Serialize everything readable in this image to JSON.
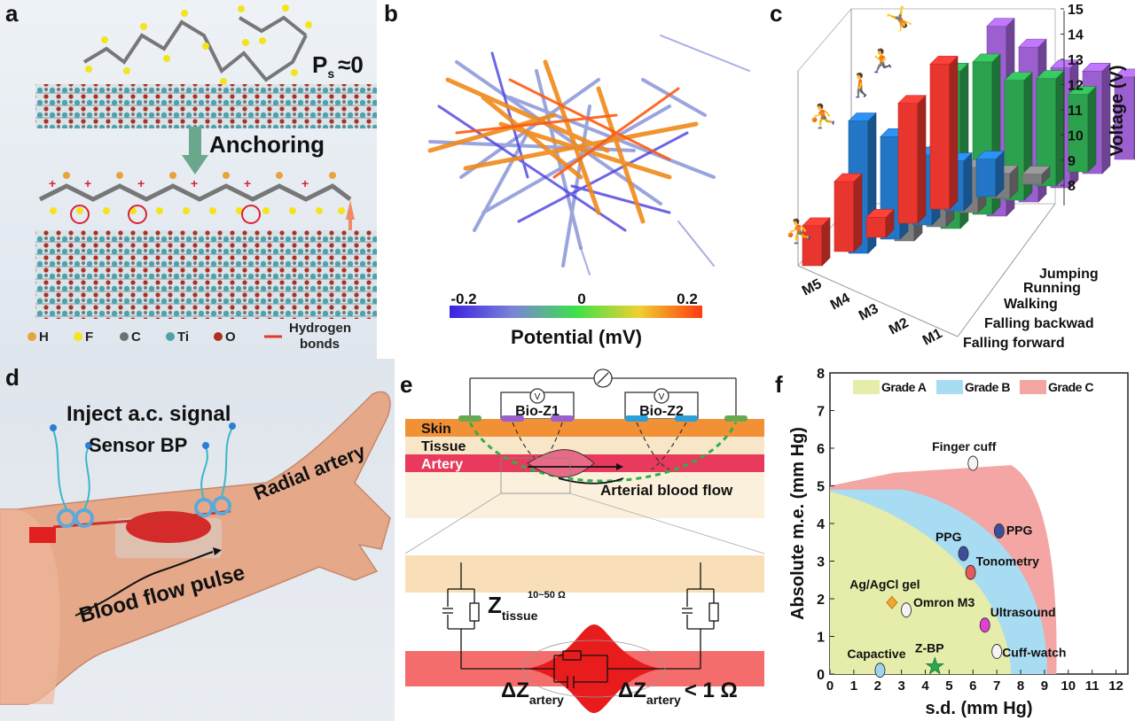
{
  "panel_labels": {
    "a": "a",
    "b": "b",
    "c": "c",
    "d": "d",
    "e": "e",
    "f": "f"
  },
  "panel_a": {
    "ps_label": "P",
    "ps_sub": "s",
    "ps_value": "≈0",
    "anchoring": "Anchoring",
    "legend": [
      {
        "label": "H",
        "color": "#e8a33c"
      },
      {
        "label": "F",
        "color": "#f4e41c"
      },
      {
        "label": "C",
        "color": "#6f6f6f"
      },
      {
        "label": "Ti",
        "color": "#4fa3a8"
      },
      {
        "label": "O",
        "color": "#b0301e"
      }
    ],
    "hbond_label_1": "Hydrogen",
    "hbond_label_2": "bonds"
  },
  "panel_b": {
    "colorbar_ticks": [
      "-0.2",
      "0",
      "0.2"
    ],
    "colorbar_label": "Potential (mV)"
  },
  "panel_c": {
    "chart_data": {
      "type": "bar3d",
      "zlabel": "Voltage (V)",
      "zticks": [
        "8",
        "9",
        "10",
        "11",
        "12",
        "13",
        "14",
        "15"
      ],
      "zlim": [
        7.2,
        15
      ],
      "rows": [
        "M1",
        "M2",
        "M3",
        "M4",
        "M5"
      ],
      "series": [
        {
          "name": "Falling forward",
          "color": "#e8352d",
          "values": [
            13.0,
            12.0,
            8.0,
            10.0,
            8.8
          ]
        },
        {
          "name": "Falling backwad",
          "color": "#2376c6",
          "values": [
            8.7,
            9.2,
            10.0,
            11.3,
            12.5
          ]
        },
        {
          "name": "Walking",
          "color": "#7d7d7d",
          "values": [
            7.6,
            8.2,
            9.0,
            10.3,
            11.4
          ]
        },
        {
          "name": "Running",
          "color": "#2ca24e",
          "values": [
            10.3,
            11.5,
            12.0,
            13.3,
            13.5
          ]
        },
        {
          "name": "Jumping",
          "color": "#9b5fd0",
          "values": [
            10.5,
            11.3,
            12.0,
            13.4,
            14.8
          ]
        }
      ]
    }
  },
  "panel_d": {
    "inject": "Inject a.c. signal",
    "sensor": "Sensor BP",
    "artery": "Radial artery",
    "flow": "Blood flow pulse"
  },
  "panel_e": {
    "bioz1": "Bio-Z1",
    "bioz2": "Bio-Z2",
    "skin": "Skin",
    "tissue": "Tissue",
    "artery": "Artery",
    "flow": "Arterial blood flow",
    "z_symbol": "Z",
    "z_sub": "tissue",
    "z_range": "10~50 Ω",
    "dz_symbol": "ΔZ",
    "dz_sub": "artery",
    "dz2_symbol": "ΔZ",
    "dz2_sub": "artery",
    "dz2_value": "< 1 Ω",
    "voltmeter": "V"
  },
  "panel_f": {
    "chart_data": {
      "type": "scatter",
      "xlabel": "s.d. (mm Hg)",
      "ylabel": "Absolute m.e. (mm Hg)",
      "xlim": [
        0,
        12.5
      ],
      "ylim": [
        0,
        8
      ],
      "xticks": [
        "0",
        "1",
        "2",
        "3",
        "4",
        "5",
        "6",
        "7",
        "8",
        "9",
        "10",
        "11",
        "12"
      ],
      "yticks": [
        "0",
        "1",
        "2",
        "3",
        "4",
        "5",
        "6",
        "7",
        "8"
      ],
      "legend": [
        {
          "label": "Grade A",
          "color": "#e6ecaa"
        },
        {
          "label": "Grade B",
          "color": "#a8dcf2"
        },
        {
          "label": "Grade C",
          "color": "#f3a6a3"
        }
      ],
      "points": [
        {
          "label": "Finger cuff",
          "x": 6.0,
          "y": 5.6,
          "color": "#f4f4f4"
        },
        {
          "label": "PPG",
          "x": 7.1,
          "y": 3.8,
          "color": "#3d4f9a"
        },
        {
          "label": "PPG",
          "x": 5.6,
          "y": 3.2,
          "color": "#3d4f9a"
        },
        {
          "label": "Tonometry",
          "x": 5.9,
          "y": 2.7,
          "color": "#e85a5a"
        },
        {
          "label": "Ag/AgCl gel",
          "x": 2.6,
          "y": 1.9,
          "color": "#f0a830"
        },
        {
          "label": "Omron M3",
          "x": 3.2,
          "y": 1.7,
          "color": "#f4f4f4"
        },
        {
          "label": "Ultrasound",
          "x": 6.5,
          "y": 1.3,
          "color": "#e43fd4"
        },
        {
          "label": "Cuff-watch",
          "x": 7.0,
          "y": 0.6,
          "color": "#f4f4f4"
        },
        {
          "label": "Capactive",
          "x": 2.1,
          "y": 0.1,
          "color": "#9fd4f0"
        },
        {
          "label": "Z-BP",
          "x": 4.4,
          "y": 0.2,
          "color": "#2fa64e"
        }
      ]
    }
  }
}
